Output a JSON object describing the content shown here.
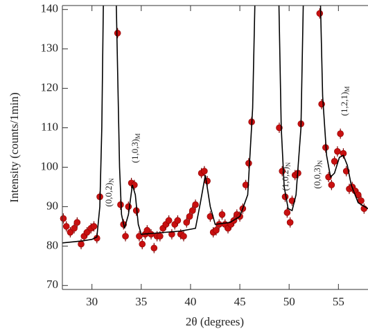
{
  "chart_data": {
    "type": "scatter",
    "xlabel": "2θ (degrees)",
    "ylabel": "Intensity (counts/1min)",
    "xlim": [
      27,
      58
    ],
    "ylim": [
      69,
      141
    ],
    "xticks": [
      30,
      35,
      40,
      45,
      50,
      55
    ],
    "yticks": [
      70,
      80,
      90,
      100,
      110,
      120,
      130,
      140
    ],
    "series": [
      {
        "type": "scatter",
        "color": "#c81010",
        "x": [
          27.1,
          27.4,
          27.8,
          28.2,
          28.5,
          28.9,
          29.2,
          29.5,
          29.9,
          30.2,
          30.5,
          30.8,
          32.6,
          32.9,
          33.2,
          33.4,
          33.7,
          34.0,
          34.3,
          34.5,
          34.8,
          35.1,
          35.4,
          35.6,
          36.0,
          36.3,
          36.6,
          36.9,
          37.2,
          37.5,
          37.8,
          38.1,
          38.4,
          38.7,
          39.0,
          39.3,
          39.6,
          39.9,
          40.2,
          40.5,
          41.1,
          41.4,
          41.7,
          42.0,
          42.3,
          42.6,
          42.9,
          43.2,
          43.5,
          43.8,
          44.1,
          44.4,
          44.7,
          45.0,
          45.3,
          45.6,
          45.9,
          46.2,
          49.0,
          49.3,
          49.6,
          49.8,
          50.1,
          50.3,
          50.6,
          50.9,
          51.2,
          53.1,
          53.3,
          53.7,
          54.0,
          54.3,
          54.6,
          54.9,
          55.2,
          55.5,
          55.8,
          56.1,
          56.4,
          56.7,
          57.0,
          57.3,
          57.6
        ],
        "values": [
          87,
          85,
          83.5,
          84.5,
          86,
          80.5,
          82.5,
          83.5,
          84.5,
          85,
          82,
          92.5,
          134,
          90.5,
          85.5,
          82.5,
          90,
          96,
          95.5,
          89,
          82.5,
          80.5,
          83,
          84,
          83,
          79.5,
          82.5,
          82.5,
          84.5,
          85.5,
          86.5,
          83,
          85.5,
          86.5,
          83,
          82.5,
          86,
          87.5,
          89,
          90.5,
          98.5,
          99,
          96.5,
          87.5,
          83.5,
          84,
          85.5,
          88,
          85.5,
          84.5,
          85.5,
          86.5,
          88,
          87.5,
          89.5,
          95.5,
          101,
          111.5,
          110,
          99,
          92.5,
          88.5,
          86,
          91.5,
          98,
          98.5,
          111,
          139,
          116,
          105,
          97.5,
          95.5,
          101.5,
          104,
          108.5,
          103.5,
          99,
          94.5,
          95,
          94,
          93,
          91.5,
          89.5
        ],
        "errors": [
          1.3,
          1.3,
          1.3,
          1.3,
          1.3,
          1.3,
          1.3,
          1.3,
          1.3,
          1.3,
          1.3,
          1.3,
          1.3,
          1.3,
          1.3,
          1.3,
          1.3,
          1.3,
          1.3,
          1.3,
          1.3,
          1.3,
          1.3,
          1.3,
          1.3,
          1.3,
          1.3,
          1.3,
          1.3,
          1.3,
          1.3,
          1.3,
          1.3,
          1.3,
          1.3,
          1.3,
          1.3,
          1.3,
          1.3,
          1.3,
          1.3,
          1.3,
          1.3,
          1.3,
          1.3,
          1.3,
          1.3,
          1.3,
          1.3,
          1.3,
          1.3,
          1.3,
          1.3,
          1.3,
          1.3,
          1.3,
          1.3,
          1.3,
          1.3,
          1.3,
          1.3,
          1.3,
          1.3,
          1.3,
          1.3,
          1.3,
          1.3,
          1.3,
          1.3,
          1.3,
          1.3,
          1.3,
          1.3,
          1.3,
          1.3,
          1.3,
          1.3,
          1.3,
          1.3,
          1.3,
          1.3,
          1.3,
          1.3
        ]
      },
      {
        "type": "line",
        "color": "#000000",
        "x": [
          27,
          29,
          30,
          30.5,
          30.8,
          31,
          31.2,
          32.4,
          32.6,
          32.8,
          33.0,
          33.3,
          33.7,
          34.1,
          34.4,
          34.7,
          35,
          37,
          39,
          40.5,
          41,
          41.5,
          42,
          42.5,
          44,
          45,
          45.8,
          46.3,
          46.6,
          48.9,
          49.2,
          49.5,
          49.9,
          50.3,
          50.7,
          51.2,
          51.5,
          53.1,
          53.4,
          53.8,
          54.2,
          54.6,
          55.1,
          55.5,
          55.9,
          56.3,
          57,
          58
        ],
        "values": [
          80.8,
          81.3,
          81.7,
          82.3,
          90,
          110,
          150,
          150,
          125,
          100,
          88,
          84.5,
          88,
          95.5,
          93,
          85.5,
          83,
          83.4,
          83.8,
          84.5,
          91,
          98,
          90,
          85.5,
          86,
          87.5,
          93,
          115,
          150,
          150,
          110,
          95,
          89.5,
          89,
          93,
          110,
          150,
          150,
          118,
          103,
          97.5,
          98.5,
          102.5,
          103,
          100.5,
          95.5,
          91,
          89.5
        ]
      }
    ],
    "annotations": [
      {
        "text": "(0,0,2)",
        "sub": "N"
      },
      {
        "text": "(1,0,3)",
        "sub": "M"
      },
      {
        "text": "(1,0,2)",
        "sub": "N"
      },
      {
        "text": "(0,0,3)",
        "sub": "N"
      },
      {
        "text": "(1,2,1)",
        "sub": "M"
      }
    ]
  }
}
